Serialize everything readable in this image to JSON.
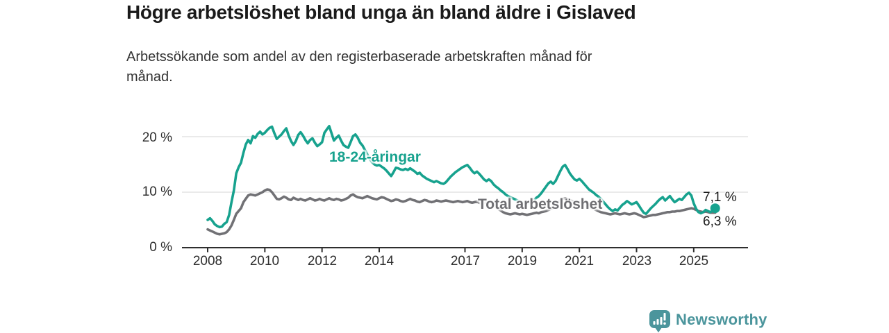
{
  "header": {
    "title": "Högre arbetslöshet bland unga än bland äldre i Gislaved",
    "subtitle_line1": "Arbetssökande som andel av den registerbaserade arbetskraften månad för",
    "subtitle_line2": "månad."
  },
  "chart_data": {
    "type": "line",
    "title": "Högre arbetslöshet bland unga än bland äldre i Gislaved",
    "subtitle": "Arbetssökande som andel av den registerbaserade arbetskraften månad för månad.",
    "unit": "%",
    "grid": "horizontal-only",
    "legend_position": "inline-annotations",
    "x_axis": {
      "start_year": 2008,
      "points_per_year": 12,
      "end_point": "2025-10",
      "tick_years": [
        2008,
        2010,
        2012,
        2014,
        2017,
        2019,
        2021,
        2023,
        2025
      ]
    },
    "y_axis": {
      "range": [
        0,
        23
      ],
      "ticks": [
        {
          "value": 0,
          "label": "0 %"
        },
        {
          "value": 10,
          "label": "10 %"
        },
        {
          "value": 20,
          "label": "20 %"
        }
      ]
    },
    "series": [
      {
        "name": "18-24-åringar",
        "color": "#17a28e",
        "end_label": "7,1 %",
        "end_value": 7.1,
        "marker_end": true,
        "values": [
          5.0,
          5.3,
          4.8,
          4.2,
          3.9,
          3.7,
          3.8,
          4.3,
          4.6,
          5.9,
          8.2,
          10.3,
          13.4,
          14.5,
          15.3,
          17.1,
          18.6,
          19.4,
          18.8,
          20.1,
          19.8,
          20.5,
          20.9,
          20.4,
          20.7,
          21.2,
          21.6,
          21.8,
          20.6,
          19.6,
          20.0,
          20.4,
          21.0,
          21.5,
          20.2,
          19.2,
          18.5,
          19.2,
          20.3,
          20.8,
          20.2,
          19.4,
          18.8,
          19.4,
          19.7,
          18.9,
          18.3,
          18.6,
          19.0,
          20.7,
          21.3,
          21.9,
          20.6,
          19.3,
          19.8,
          20.2,
          19.3,
          18.5,
          18.2,
          18.0,
          19.0,
          20.1,
          20.4,
          19.8,
          18.9,
          18.4,
          17.6,
          16.8,
          16.0,
          15.4,
          15.0,
          14.8,
          14.9,
          14.6,
          14.3,
          13.9,
          13.4,
          12.9,
          13.6,
          14.4,
          14.3,
          14.1,
          14.0,
          14.2,
          14.0,
          14.3,
          14.0,
          13.7,
          13.3,
          13.5,
          13.0,
          12.7,
          12.4,
          12.2,
          12.0,
          11.8,
          12.0,
          11.8,
          11.6,
          11.5,
          11.8,
          12.3,
          12.8,
          13.2,
          13.6,
          13.9,
          14.2,
          14.5,
          14.7,
          14.9,
          14.4,
          13.8,
          13.4,
          13.7,
          13.3,
          12.8,
          12.3,
          12.0,
          12.3,
          12.0,
          11.4,
          11.0,
          10.7,
          10.3,
          10.0,
          9.6,
          9.3,
          9.1,
          8.9,
          8.7,
          8.5,
          8.3,
          8.1,
          8.0,
          7.9,
          8.0,
          8.2,
          8.6,
          9.0,
          9.3,
          9.8,
          10.4,
          11.0,
          11.6,
          11.9,
          11.5,
          12.0,
          12.9,
          13.8,
          14.6,
          14.9,
          14.2,
          13.4,
          12.8,
          12.3,
          12.1,
          12.4,
          12.0,
          11.5,
          11.0,
          10.5,
          10.2,
          9.9,
          9.5,
          9.2,
          8.8,
          8.3,
          7.8,
          7.3,
          6.9,
          6.6,
          6.9,
          6.7,
          7.2,
          7.7,
          8.0,
          8.4,
          8.1,
          7.8,
          8.0,
          8.2,
          7.6,
          6.9,
          6.3,
          6.1,
          6.6,
          7.1,
          7.5,
          7.9,
          8.4,
          8.8,
          9.1,
          8.5,
          8.9,
          9.3,
          8.7,
          8.2,
          8.5,
          8.8,
          8.6,
          9.1,
          9.6,
          9.9,
          9.4,
          8.0,
          7.0,
          6.4,
          6.2,
          6.4,
          6.8,
          6.6,
          6.4,
          6.7,
          7.1
        ]
      },
      {
        "name": "Total arbetslöshet",
        "color": "#717175",
        "end_label": "6,3 %",
        "end_value": 6.3,
        "marker_end": false,
        "values": [
          3.3,
          3.1,
          2.9,
          2.7,
          2.5,
          2.4,
          2.5,
          2.6,
          2.8,
          3.3,
          4.0,
          5.0,
          6.1,
          6.6,
          7.1,
          8.2,
          8.8,
          9.4,
          9.6,
          9.5,
          9.4,
          9.6,
          9.8,
          10.0,
          10.3,
          10.5,
          10.4,
          10.0,
          9.4,
          8.8,
          8.7,
          8.9,
          9.2,
          9.0,
          8.7,
          8.6,
          9.0,
          8.8,
          8.6,
          8.8,
          8.6,
          8.5,
          8.7,
          8.9,
          8.7,
          8.5,
          8.6,
          8.8,
          8.6,
          8.5,
          8.7,
          8.9,
          8.7,
          8.6,
          8.8,
          8.7,
          8.5,
          8.6,
          8.8,
          9.0,
          9.4,
          9.6,
          9.3,
          9.1,
          9.0,
          8.9,
          9.1,
          9.3,
          9.1,
          8.9,
          8.8,
          8.7,
          8.9,
          9.1,
          9.0,
          8.8,
          8.6,
          8.4,
          8.5,
          8.7,
          8.6,
          8.4,
          8.3,
          8.4,
          8.6,
          8.8,
          8.6,
          8.5,
          8.3,
          8.2,
          8.4,
          8.6,
          8.5,
          8.3,
          8.2,
          8.3,
          8.5,
          8.4,
          8.3,
          8.4,
          8.5,
          8.4,
          8.3,
          8.2,
          8.3,
          8.4,
          8.3,
          8.2,
          8.3,
          8.4,
          8.2,
          8.1,
          8.2,
          8.3,
          8.1,
          8.0,
          8.1,
          8.2,
          8.0,
          7.9,
          7.6,
          7.3,
          7.0,
          6.7,
          6.4,
          6.2,
          6.1,
          6.0,
          6.1,
          6.2,
          6.1,
          6.0,
          6.1,
          6.0,
          5.9,
          6.0,
          6.1,
          6.2,
          6.3,
          6.2,
          6.4,
          6.5,
          6.6,
          6.8,
          7.0,
          7.2,
          7.6,
          8.1,
          8.5,
          8.8,
          8.9,
          8.7,
          8.5,
          8.4,
          8.2,
          8.1,
          8.2,
          8.0,
          7.8,
          7.6,
          7.4,
          7.2,
          7.0,
          6.8,
          6.6,
          6.4,
          6.3,
          6.2,
          6.1,
          6.0,
          6.1,
          6.2,
          6.1,
          6.0,
          6.1,
          6.2,
          6.1,
          6.0,
          6.1,
          6.2,
          6.1,
          5.9,
          5.7,
          5.5,
          5.6,
          5.7,
          5.8,
          5.9,
          5.9,
          6.0,
          6.1,
          6.2,
          6.3,
          6.4,
          6.4,
          6.5,
          6.5,
          6.6,
          6.6,
          6.7,
          6.8,
          6.9,
          7.0,
          7.1,
          7.0,
          6.8,
          6.6,
          6.5,
          6.4,
          6.5,
          6.4,
          6.3,
          6.3,
          6.3
        ]
      }
    ]
  },
  "colors": {
    "accent_teal": "#17a28e",
    "line_gray": "#717175",
    "label_gray": "#6f6f73",
    "grid": "#e3e3e3",
    "axis": "#2e2e2e",
    "text_dark": "#1a1a1a",
    "text_body": "#333333",
    "brand_teal": "#4b959c"
  },
  "footer": {
    "brand": "Newsworthy"
  }
}
